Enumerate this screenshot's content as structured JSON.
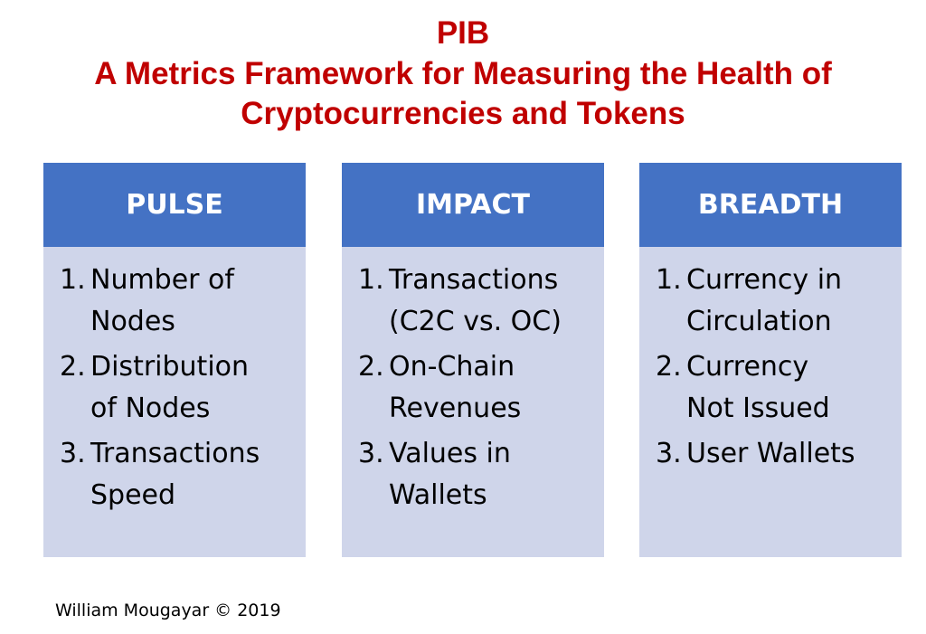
{
  "title": {
    "line1": "PIB",
    "line2": "A Metrics Framework for Measuring the Health of",
    "line3": "Cryptocurrencies and Tokens"
  },
  "colors": {
    "title": "#c00000",
    "header_fill": "#4472c4",
    "body_fill": "#cfd5ea"
  },
  "columns": [
    {
      "header": "PULSE",
      "items": [
        {
          "num": "1.",
          "lines": [
            "Number of",
            "Nodes"
          ]
        },
        {
          "num": "2.",
          "lines": [
            "Distribution",
            "of Nodes"
          ]
        },
        {
          "num": "3.",
          "lines": [
            "Transactions",
            "Speed"
          ]
        }
      ]
    },
    {
      "header": "IMPACT",
      "items": [
        {
          "num": "1.",
          "lines": [
            "Transactions",
            "(C2C vs. OC)"
          ]
        },
        {
          "num": "2.",
          "lines": [
            "On-Chain",
            "Revenues"
          ]
        },
        {
          "num": "3.",
          "lines": [
            "Values in",
            "Wallets"
          ]
        }
      ]
    },
    {
      "header": "BREADTH",
      "items": [
        {
          "num": "1.",
          "lines": [
            "Currency in",
            "Circulation"
          ]
        },
        {
          "num": "2.",
          "lines": [
            "Currency",
            "Not Issued"
          ]
        },
        {
          "num": "3.",
          "lines": [
            "User Wallets"
          ]
        }
      ]
    }
  ],
  "credit": "William Mougayar © 2019"
}
